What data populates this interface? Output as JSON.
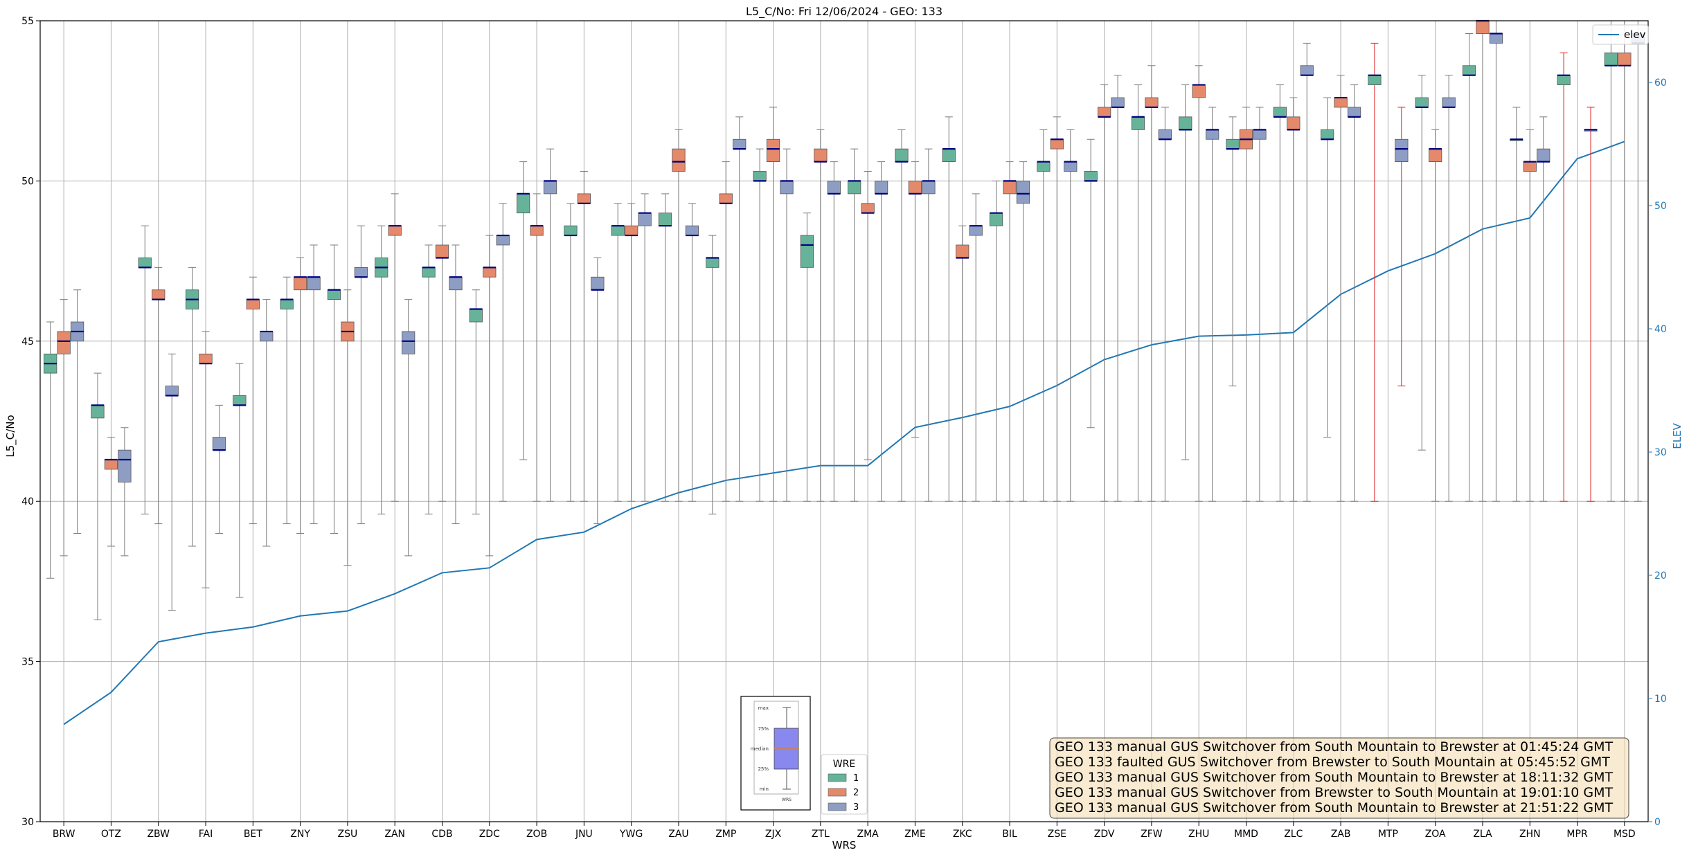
{
  "chart_data": {
    "type": "box",
    "title": "L5_C/No: Fri 12/06/2024 - GEO: 133",
    "xlabel": "WRS",
    "ylabel": "L5_C/No",
    "y2label": "ELEV",
    "ylim": [
      30,
      55
    ],
    "y2lim": [
      0,
      65
    ],
    "yticks": [
      30,
      35,
      40,
      45,
      50,
      55
    ],
    "y2ticks": [
      0,
      10,
      20,
      30,
      40,
      50,
      60
    ],
    "grid": true,
    "categories": [
      "BRW",
      "OTZ",
      "ZBW",
      "FAI",
      "BET",
      "ZNY",
      "ZSU",
      "ZAN",
      "CDB",
      "ZDC",
      "ZOB",
      "JNU",
      "YWG",
      "ZAU",
      "ZMP",
      "ZJX",
      "ZTL",
      "ZMA",
      "ZME",
      "ZKC",
      "BIL",
      "ZSE",
      "ZDV",
      "ZFW",
      "ZHU",
      "MMD",
      "ZLC",
      "ZAB",
      "MTP",
      "ZOA",
      "ZLA",
      "ZHN",
      "MPR",
      "MSD"
    ],
    "legend": {
      "title": "WRE",
      "entries": [
        {
          "label": "1",
          "color": "#66b39a"
        },
        {
          "label": "2",
          "color": "#e5896b"
        },
        {
          "label": "3",
          "color": "#8e9dc4"
        }
      ],
      "position": "bottom-center"
    },
    "elev_legend": {
      "label": "elev",
      "position": "top-right"
    },
    "colors": {
      "wre1": "#66b39a",
      "wre2": "#e5896b",
      "wre3": "#8e9dc4",
      "elev": "#1f77b4",
      "fault": "#e02020",
      "median": "#000080",
      "whisker": "#7a7a7a",
      "grid": "#b0b0b0",
      "inset": "#8888ee"
    },
    "inset_labels": [
      "max",
      "75%",
      "median",
      "25%",
      "min",
      "WRS"
    ],
    "elev": [
      7.9,
      10.5,
      14.6,
      15.3,
      15.8,
      16.7,
      17.1,
      18.5,
      20.2,
      20.6,
      22.9,
      23.5,
      25.4,
      26.7,
      27.7,
      28.3,
      28.9,
      28.9,
      32.0,
      32.8,
      33.7,
      35.4,
      37.5,
      38.7,
      39.4,
      39.5,
      39.7,
      42.8,
      44.7,
      46.1,
      48.1,
      49.0,
      53.8,
      55.2
    ],
    "boxes": [
      {
        "cat": 0,
        "wre": 1,
        "min": 37.6,
        "q1": 44.0,
        "med": 44.3,
        "q3": 44.6,
        "max": 45.6
      },
      {
        "cat": 0,
        "wre": 2,
        "min": 38.3,
        "q1": 44.6,
        "med": 45.0,
        "q3": 45.3,
        "max": 46.3
      },
      {
        "cat": 0,
        "wre": 3,
        "min": 39.0,
        "q1": 45.0,
        "med": 45.3,
        "q3": 45.6,
        "max": 46.6
      },
      {
        "cat": 1,
        "wre": 1,
        "min": 36.3,
        "q1": 42.6,
        "med": 43.0,
        "q3": 43.0,
        "max": 44.0
      },
      {
        "cat": 1,
        "wre": 2,
        "min": 38.6,
        "q1": 41.0,
        "med": 41.3,
        "q3": 41.3,
        "max": 42.0
      },
      {
        "cat": 1,
        "wre": 3,
        "min": 38.3,
        "q1": 40.6,
        "med": 41.3,
        "q3": 41.6,
        "max": 42.3
      },
      {
        "cat": 2,
        "wre": 1,
        "min": 39.6,
        "q1": 47.3,
        "med": 47.3,
        "q3": 47.6,
        "max": 48.6
      },
      {
        "cat": 2,
        "wre": 2,
        "min": 39.3,
        "q1": 46.3,
        "med": 46.3,
        "q3": 46.6,
        "max": 47.3
      },
      {
        "cat": 2,
        "wre": 3,
        "min": 36.6,
        "q1": 43.3,
        "med": 43.3,
        "q3": 43.6,
        "max": 44.6
      },
      {
        "cat": 3,
        "wre": 1,
        "min": 38.6,
        "q1": 46.0,
        "med": 46.3,
        "q3": 46.6,
        "max": 47.3
      },
      {
        "cat": 3,
        "wre": 2,
        "min": 37.3,
        "q1": 44.3,
        "med": 44.3,
        "q3": 44.6,
        "max": 45.3
      },
      {
        "cat": 3,
        "wre": 3,
        "min": 39.0,
        "q1": 41.6,
        "med": 41.6,
        "q3": 42.0,
        "max": 43.0
      },
      {
        "cat": 4,
        "wre": 1,
        "min": 37.0,
        "q1": 43.0,
        "med": 43.0,
        "q3": 43.3,
        "max": 44.3
      },
      {
        "cat": 4,
        "wre": 2,
        "min": 39.3,
        "q1": 46.0,
        "med": 46.3,
        "q3": 46.3,
        "max": 47.0
      },
      {
        "cat": 4,
        "wre": 3,
        "min": 38.6,
        "q1": 45.0,
        "med": 45.3,
        "q3": 45.3,
        "max": 46.3
      },
      {
        "cat": 5,
        "wre": 1,
        "min": 39.3,
        "q1": 46.0,
        "med": 46.3,
        "q3": 46.3,
        "max": 47.0
      },
      {
        "cat": 5,
        "wre": 2,
        "min": 39.0,
        "q1": 46.6,
        "med": 47.0,
        "q3": 47.0,
        "max": 47.6
      },
      {
        "cat": 5,
        "wre": 3,
        "min": 39.3,
        "q1": 46.6,
        "med": 47.0,
        "q3": 47.0,
        "max": 48.0
      },
      {
        "cat": 6,
        "wre": 1,
        "min": 39.0,
        "q1": 46.3,
        "med": 46.6,
        "q3": 46.6,
        "max": 48.0
      },
      {
        "cat": 6,
        "wre": 2,
        "min": 38.0,
        "q1": 45.0,
        "med": 45.3,
        "q3": 45.6,
        "max": 46.6
      },
      {
        "cat": 6,
        "wre": 3,
        "min": 39.3,
        "q1": 47.0,
        "med": 47.0,
        "q3": 47.3,
        "max": 48.6
      },
      {
        "cat": 7,
        "wre": 1,
        "min": 39.6,
        "q1": 47.0,
        "med": 47.3,
        "q3": 47.6,
        "max": 48.6
      },
      {
        "cat": 7,
        "wre": 2,
        "min": 40.0,
        "q1": 48.3,
        "med": 48.6,
        "q3": 48.6,
        "max": 49.6
      },
      {
        "cat": 7,
        "wre": 3,
        "min": 38.3,
        "q1": 44.6,
        "med": 45.0,
        "q3": 45.3,
        "max": 46.3
      },
      {
        "cat": 8,
        "wre": 1,
        "min": 39.6,
        "q1": 47.0,
        "med": 47.3,
        "q3": 47.3,
        "max": 48.0
      },
      {
        "cat": 8,
        "wre": 2,
        "min": 40.0,
        "q1": 47.6,
        "med": 47.6,
        "q3": 48.0,
        "max": 48.6
      },
      {
        "cat": 8,
        "wre": 3,
        "min": 39.3,
        "q1": 46.6,
        "med": 47.0,
        "q3": 47.0,
        "max": 48.0
      },
      {
        "cat": 9,
        "wre": 1,
        "min": 39.6,
        "q1": 45.6,
        "med": 46.0,
        "q3": 46.0,
        "max": 46.6
      },
      {
        "cat": 9,
        "wre": 2,
        "min": 38.3,
        "q1": 47.0,
        "med": 47.3,
        "q3": 47.3,
        "max": 48.3
      },
      {
        "cat": 9,
        "wre": 3,
        "min": 40.0,
        "q1": 48.0,
        "med": 48.3,
        "q3": 48.3,
        "max": 49.3
      },
      {
        "cat": 10,
        "wre": 1,
        "min": 41.3,
        "q1": 49.0,
        "med": 49.6,
        "q3": 49.6,
        "max": 50.6
      },
      {
        "cat": 10,
        "wre": 2,
        "min": 40.0,
        "q1": 48.3,
        "med": 48.6,
        "q3": 48.6,
        "max": 49.6
      },
      {
        "cat": 10,
        "wre": 3,
        "min": 40.0,
        "q1": 49.6,
        "med": 50.0,
        "q3": 50.0,
        "max": 51.0
      },
      {
        "cat": 11,
        "wre": 1,
        "min": 40.0,
        "q1": 48.3,
        "med": 48.3,
        "q3": 48.6,
        "max": 49.3
      },
      {
        "cat": 11,
        "wre": 2,
        "min": 40.0,
        "q1": 49.3,
        "med": 49.3,
        "q3": 49.6,
        "max": 50.3
      },
      {
        "cat": 11,
        "wre": 3,
        "min": 39.3,
        "q1": 46.6,
        "med": 46.6,
        "q3": 47.0,
        "max": 47.6
      },
      {
        "cat": 12,
        "wre": 1,
        "min": 40.0,
        "q1": 48.3,
        "med": 48.6,
        "q3": 48.6,
        "max": 49.3
      },
      {
        "cat": 12,
        "wre": 2,
        "min": 40.0,
        "q1": 48.3,
        "med": 48.3,
        "q3": 48.6,
        "max": 49.3
      },
      {
        "cat": 12,
        "wre": 3,
        "min": 40.0,
        "q1": 48.6,
        "med": 49.0,
        "q3": 49.0,
        "max": 49.6
      },
      {
        "cat": 13,
        "wre": 1,
        "min": 40.0,
        "q1": 48.6,
        "med": 48.6,
        "q3": 49.0,
        "max": 49.6
      },
      {
        "cat": 13,
        "wre": 2,
        "min": 40.0,
        "q1": 50.3,
        "med": 50.6,
        "q3": 51.0,
        "max": 51.6
      },
      {
        "cat": 13,
        "wre": 3,
        "min": 40.0,
        "q1": 48.3,
        "med": 48.3,
        "q3": 48.6,
        "max": 49.3
      },
      {
        "cat": 14,
        "wre": 1,
        "min": 39.6,
        "q1": 47.3,
        "med": 47.6,
        "q3": 47.6,
        "max": 48.3
      },
      {
        "cat": 14,
        "wre": 2,
        "min": 40.0,
        "q1": 49.3,
        "med": 49.3,
        "q3": 49.6,
        "max": 50.6
      },
      {
        "cat": 14,
        "wre": 3,
        "min": 40.0,
        "q1": 51.0,
        "med": 51.0,
        "q3": 51.3,
        "max": 52.0
      },
      {
        "cat": 15,
        "wre": 1,
        "min": 40.0,
        "q1": 50.0,
        "med": 50.0,
        "q3": 50.3,
        "max": 51.0
      },
      {
        "cat": 15,
        "wre": 2,
        "min": 40.0,
        "q1": 50.6,
        "med": 51.0,
        "q3": 51.3,
        "max": 52.3
      },
      {
        "cat": 15,
        "wre": 3,
        "min": 40.0,
        "q1": 49.6,
        "med": 50.0,
        "q3": 50.0,
        "max": 51.0
      },
      {
        "cat": 16,
        "wre": 1,
        "min": 40.0,
        "q1": 47.3,
        "med": 48.0,
        "q3": 48.3,
        "max": 49.0
      },
      {
        "cat": 16,
        "wre": 2,
        "min": 40.0,
        "q1": 50.6,
        "med": 50.6,
        "q3": 51.0,
        "max": 51.6
      },
      {
        "cat": 16,
        "wre": 3,
        "min": 40.0,
        "q1": 49.6,
        "med": 49.6,
        "q3": 50.0,
        "max": 50.6
      },
      {
        "cat": 17,
        "wre": 1,
        "min": 40.0,
        "q1": 49.6,
        "med": 50.0,
        "q3": 50.0,
        "max": 51.0
      },
      {
        "cat": 17,
        "wre": 2,
        "min": 41.3,
        "q1": 49.0,
        "med": 49.0,
        "q3": 49.3,
        "max": 50.3
      },
      {
        "cat": 17,
        "wre": 3,
        "min": 40.0,
        "q1": 49.6,
        "med": 49.6,
        "q3": 50.0,
        "max": 50.6
      },
      {
        "cat": 18,
        "wre": 1,
        "min": 40.0,
        "q1": 50.6,
        "med": 50.6,
        "q3": 51.0,
        "max": 51.6
      },
      {
        "cat": 18,
        "wre": 2,
        "min": 42.0,
        "q1": 49.6,
        "med": 49.6,
        "q3": 50.0,
        "max": 50.6
      },
      {
        "cat": 18,
        "wre": 3,
        "min": 40.0,
        "q1": 49.6,
        "med": 50.0,
        "q3": 50.0,
        "max": 51.0
      },
      {
        "cat": 19,
        "wre": 1,
        "min": 40.0,
        "q1": 50.6,
        "med": 51.0,
        "q3": 51.0,
        "max": 52.0
      },
      {
        "cat": 19,
        "wre": 2,
        "min": 40.0,
        "q1": 47.6,
        "med": 47.6,
        "q3": 48.0,
        "max": 48.6
      },
      {
        "cat": 19,
        "wre": 3,
        "min": 40.0,
        "q1": 48.3,
        "med": 48.6,
        "q3": 48.6,
        "max": 49.6
      },
      {
        "cat": 20,
        "wre": 1,
        "min": 40.0,
        "q1": 48.6,
        "med": 49.0,
        "q3": 49.0,
        "max": 50.0
      },
      {
        "cat": 20,
        "wre": 2,
        "min": 40.0,
        "q1": 49.6,
        "med": 50.0,
        "q3": 50.0,
        "max": 50.6
      },
      {
        "cat": 20,
        "wre": 3,
        "min": 40.0,
        "q1": 49.3,
        "med": 49.6,
        "q3": 50.0,
        "max": 50.6
      },
      {
        "cat": 21,
        "wre": 1,
        "min": 40.0,
        "q1": 50.3,
        "med": 50.6,
        "q3": 50.6,
        "max": 51.6
      },
      {
        "cat": 21,
        "wre": 2,
        "min": 40.0,
        "q1": 51.0,
        "med": 51.3,
        "q3": 51.3,
        "max": 52.0
      },
      {
        "cat": 21,
        "wre": 3,
        "min": 40.0,
        "q1": 50.3,
        "med": 50.6,
        "q3": 50.6,
        "max": 51.6
      },
      {
        "cat": 22,
        "wre": 1,
        "min": 42.3,
        "q1": 50.0,
        "med": 50.0,
        "q3": 50.3,
        "max": 51.3
      },
      {
        "cat": 22,
        "wre": 2,
        "min": 40.0,
        "q1": 52.0,
        "med": 52.0,
        "q3": 52.3,
        "max": 53.0
      },
      {
        "cat": 22,
        "wre": 3,
        "min": 40.0,
        "q1": 52.3,
        "med": 52.3,
        "q3": 52.6,
        "max": 53.3
      },
      {
        "cat": 23,
        "wre": 1,
        "min": 40.0,
        "q1": 51.6,
        "med": 52.0,
        "q3": 52.0,
        "max": 53.0
      },
      {
        "cat": 23,
        "wre": 2,
        "min": 40.0,
        "q1": 52.3,
        "med": 52.3,
        "q3": 52.6,
        "max": 53.6
      },
      {
        "cat": 23,
        "wre": 3,
        "min": 40.0,
        "q1": 51.3,
        "med": 51.3,
        "q3": 51.6,
        "max": 52.3
      },
      {
        "cat": 24,
        "wre": 1,
        "min": 41.3,
        "q1": 51.6,
        "med": 51.6,
        "q3": 52.0,
        "max": 53.0
      },
      {
        "cat": 24,
        "wre": 2,
        "min": 40.0,
        "q1": 52.6,
        "med": 53.0,
        "q3": 53.0,
        "max": 53.6
      },
      {
        "cat": 24,
        "wre": 3,
        "min": 40.0,
        "q1": 51.3,
        "med": 51.6,
        "q3": 51.6,
        "max": 52.3
      },
      {
        "cat": 25,
        "wre": 1,
        "min": 43.6,
        "q1": 51.0,
        "med": 51.0,
        "q3": 51.3,
        "max": 52.0
      },
      {
        "cat": 25,
        "wre": 2,
        "min": 40.0,
        "q1": 51.0,
        "med": 51.3,
        "q3": 51.6,
        "max": 52.3
      },
      {
        "cat": 25,
        "wre": 3,
        "min": 40.0,
        "q1": 51.3,
        "med": 51.6,
        "q3": 51.6,
        "max": 52.3
      },
      {
        "cat": 26,
        "wre": 1,
        "min": 40.0,
        "q1": 52.0,
        "med": 52.0,
        "q3": 52.3,
        "max": 53.0
      },
      {
        "cat": 26,
        "wre": 2,
        "min": 40.0,
        "q1": 51.6,
        "med": 51.6,
        "q3": 52.0,
        "max": 52.6
      },
      {
        "cat": 26,
        "wre": 3,
        "min": 40.0,
        "q1": 53.3,
        "med": 53.3,
        "q3": 53.6,
        "max": 54.3
      },
      {
        "cat": 27,
        "wre": 1,
        "min": 42.0,
        "q1": 51.3,
        "med": 51.3,
        "q3": 51.6,
        "max": 52.6
      },
      {
        "cat": 27,
        "wre": 2,
        "min": 40.0,
        "q1": 52.3,
        "med": 52.6,
        "q3": 52.6,
        "max": 53.3
      },
      {
        "cat": 27,
        "wre": 3,
        "min": 40.0,
        "q1": 52.0,
        "med": 52.0,
        "q3": 52.3,
        "max": 53.0
      },
      {
        "cat": 28,
        "wre": 1,
        "min": 40.0,
        "q1": 53.0,
        "med": 53.3,
        "q3": 53.3,
        "max": 54.3,
        "fault": true
      },
      {
        "cat": 28,
        "wre": 3,
        "min": 43.6,
        "q1": 50.6,
        "med": 51.0,
        "q3": 51.3,
        "max": 52.3,
        "fault": true
      },
      {
        "cat": 29,
        "wre": 1,
        "min": 41.6,
        "q1": 52.3,
        "med": 52.3,
        "q3": 52.6,
        "max": 53.3
      },
      {
        "cat": 29,
        "wre": 2,
        "min": 40.0,
        "q1": 50.6,
        "med": 51.0,
        "q3": 51.0,
        "max": 51.6
      },
      {
        "cat": 29,
        "wre": 3,
        "min": 40.0,
        "q1": 52.3,
        "med": 52.3,
        "q3": 52.6,
        "max": 53.3
      },
      {
        "cat": 30,
        "wre": 1,
        "min": 40.0,
        "q1": 53.3,
        "med": 53.3,
        "q3": 53.6,
        "max": 54.6
      },
      {
        "cat": 30,
        "wre": 2,
        "min": 40.0,
        "q1": 54.6,
        "med": 55.0,
        "q3": 55.0,
        "max": 55.0
      },
      {
        "cat": 30,
        "wre": 3,
        "min": 40.0,
        "q1": 54.3,
        "med": 54.6,
        "q3": 54.6,
        "max": 55.0
      },
      {
        "cat": 31,
        "wre": 1,
        "min": 40.0,
        "q1": 51.3,
        "med": 51.3,
        "q3": 51.3,
        "max": 52.3
      },
      {
        "cat": 31,
        "wre": 2,
        "min": 40.0,
        "q1": 50.3,
        "med": 50.6,
        "q3": 50.6,
        "max": 51.6
      },
      {
        "cat": 31,
        "wre": 3,
        "min": 40.0,
        "q1": 50.6,
        "med": 50.6,
        "q3": 51.0,
        "max": 52.0
      },
      {
        "cat": 32,
        "wre": 1,
        "min": 40.0,
        "q1": 53.0,
        "med": 53.3,
        "q3": 53.3,
        "max": 54.0,
        "fault": true
      },
      {
        "cat": 32,
        "wre": 3,
        "min": 40.0,
        "q1": 51.6,
        "med": 51.6,
        "q3": 51.6,
        "max": 52.3,
        "fault": true
      },
      {
        "cat": 33,
        "wre": 1,
        "min": 40.0,
        "q1": 53.6,
        "med": 53.6,
        "q3": 54.0,
        "max": 55.0
      },
      {
        "cat": 33,
        "wre": 2,
        "min": 40.0,
        "q1": 53.6,
        "med": 53.6,
        "q3": 54.0,
        "max": 55.0
      },
      {
        "cat": 33,
        "wre": 3,
        "min": 40.0,
        "q1": 54.3,
        "med": 54.3,
        "q3": 54.6,
        "max": 55.0
      }
    ],
    "annotations": [
      "GEO 133 manual GUS Switchover from South Mountain to Brewster at 01:45:24 GMT",
      "GEO 133 faulted GUS Switchover from Brewster to South Mountain at 05:45:52 GMT",
      "GEO 133 manual GUS Switchover from South Mountain to Brewster at 18:11:32 GMT",
      "GEO 133 manual GUS Switchover from Brewster to South Mountain at 19:01:10 GMT",
      "GEO 133 manual GUS Switchover from South Mountain to Brewster at 21:51:22 GMT"
    ]
  }
}
